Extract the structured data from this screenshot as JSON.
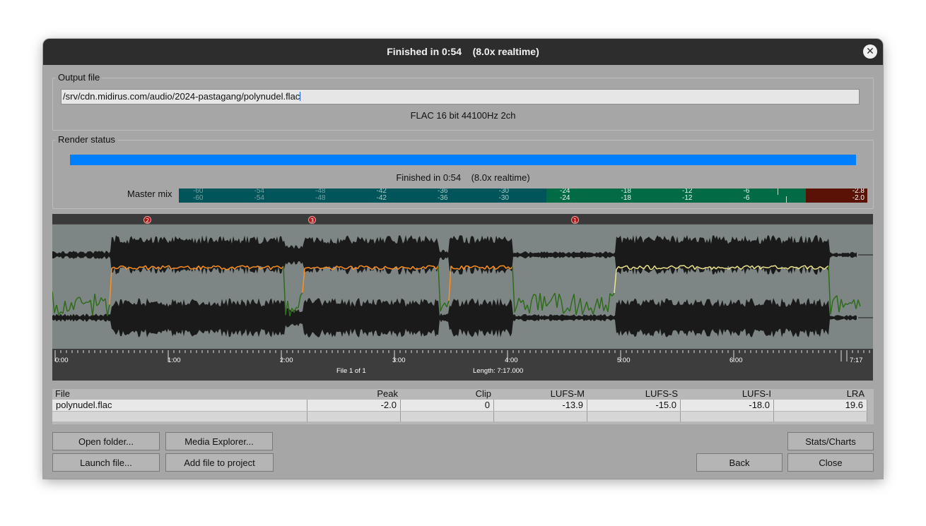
{
  "title": "Finished in 0:54    (8.0x realtime)",
  "close_glyph": "✕",
  "output": {
    "group_label": "Output file",
    "path": "/srv/cdn.midirus.com/audio/2024-pastagang/polynudel.flac",
    "format": "FLAC 16 bit 44100Hz 2ch"
  },
  "render": {
    "group_label": "Render status",
    "progress": 1.0,
    "status": "Finished in 0:54    (8.0x realtime)",
    "progress_color": "#0080ff"
  },
  "master": {
    "label": "Master mix",
    "ticks": [
      "-60",
      "-54",
      "-48",
      "-42",
      "-36",
      "-30",
      "-24",
      "-18",
      "-12",
      "-6"
    ],
    "peak_top": "-2.8",
    "peak_bottom": "-2.0"
  },
  "waveform": {
    "markers": [
      "2",
      "3",
      "1"
    ],
    "time_labels": [
      "0:00",
      "1:00",
      "2:00",
      "3:00",
      "4:00",
      "5:00",
      "6:00",
      "7:17"
    ],
    "file_count": "File 1 of 1",
    "length": "Length: 7:17.000",
    "wave_color": "#1a1a1a",
    "bg_color": "#7e8685"
  },
  "table": {
    "headers": [
      "File",
      "Peak",
      "Clip",
      "LUFS-M",
      "LUFS-S",
      "LUFS-I",
      "LRA"
    ],
    "rows": [
      [
        "polynudel.flac",
        "-2.0",
        "0",
        "-13.9",
        "-15.0",
        "-18.0",
        "19.6"
      ]
    ]
  },
  "buttons": {
    "open_folder": "Open folder...",
    "media_explorer": "Media Explorer...",
    "launch_file": "Launch file...",
    "add_file": "Add file to project",
    "stats": "Stats/Charts",
    "back": "Back",
    "close": "Close"
  }
}
